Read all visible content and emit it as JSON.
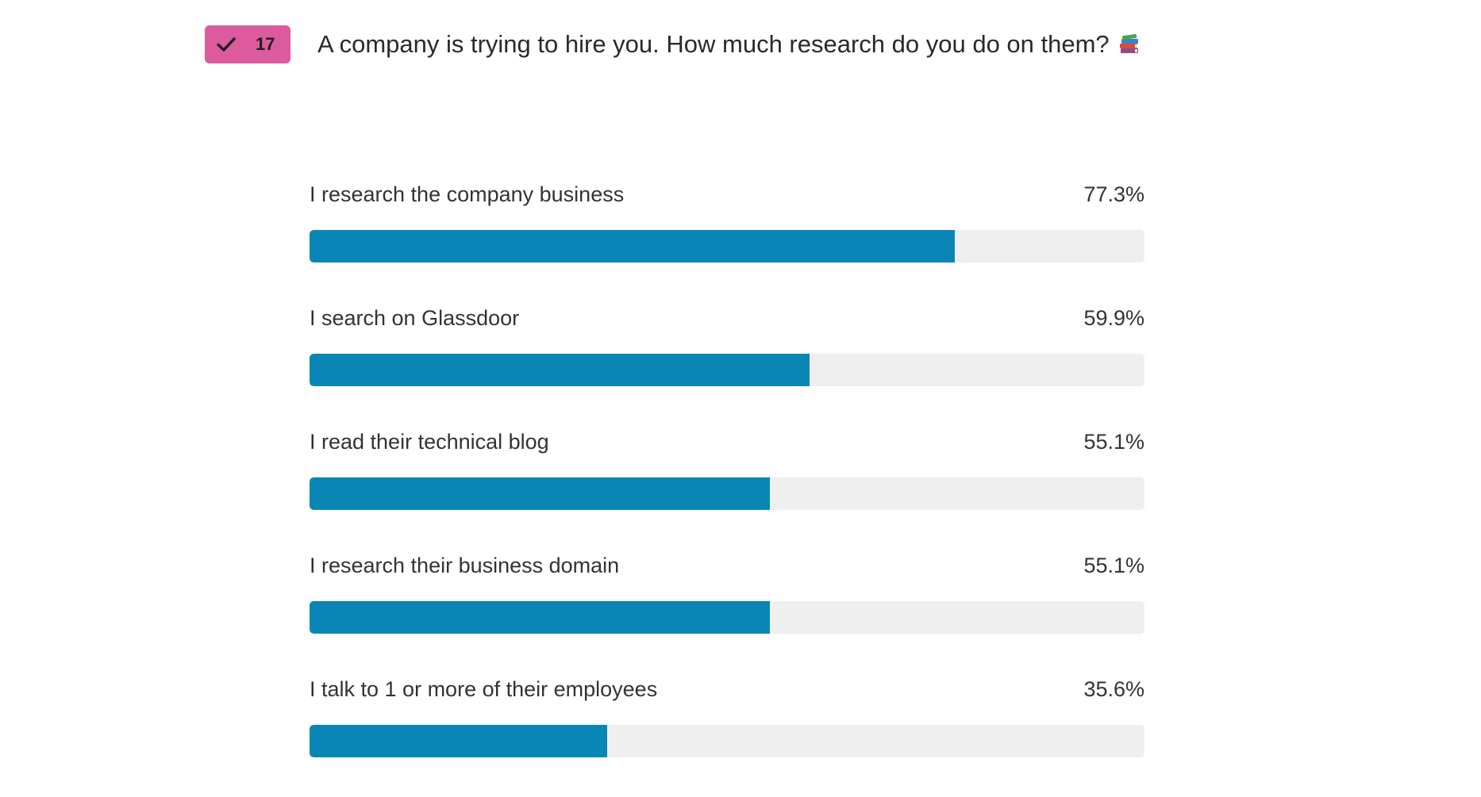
{
  "poll": {
    "vote_count": "17",
    "question": "A company is trying to hire you. How much research do you do on them?",
    "badge_icon": "check-icon",
    "question_emoji_icon": "books-icon",
    "colors": {
      "badge": "#dc5a9e",
      "bar_fill": "#0a86b6",
      "bar_track": "#efefef"
    },
    "options": [
      {
        "label": "I research the company business",
        "percent_label": "77.3%",
        "percent": 77.3
      },
      {
        "label": "I search on Glassdoor",
        "percent_label": "59.9%",
        "percent": 59.9
      },
      {
        "label": "I read their technical blog",
        "percent_label": "55.1%",
        "percent": 55.1
      },
      {
        "label": "I research their business domain",
        "percent_label": "55.1%",
        "percent": 55.1
      },
      {
        "label": "I talk to 1 or more of their employees",
        "percent_label": "35.6%",
        "percent": 35.6
      }
    ]
  }
}
